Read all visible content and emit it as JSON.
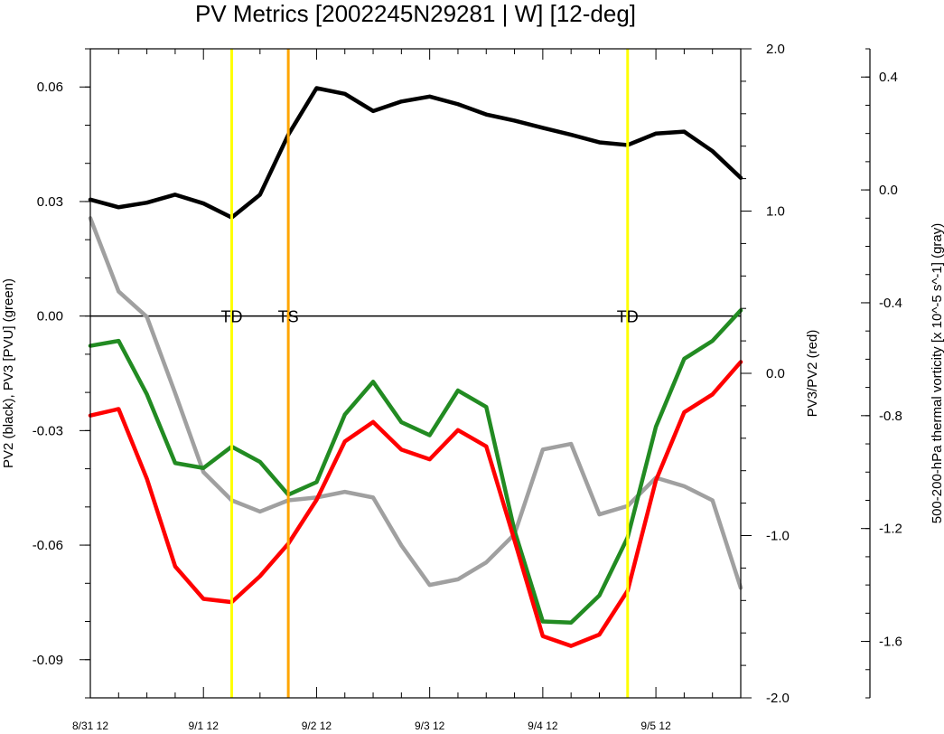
{
  "chart_data": {
    "type": "line",
    "title": "PV Metrics [2002245N29281 | W] [12-deg]",
    "left_axis": {
      "label": "PV2 (black), PV3 [PVU] (green)",
      "ylim": [
        -0.1,
        0.07
      ],
      "ticks": [
        0.06,
        0.03,
        0.0,
        -0.03,
        -0.06,
        -0.09
      ],
      "tick_labels": [
        "0.06",
        "0.03",
        "0.00",
        "-0.03",
        "-0.06",
        "-0.09"
      ]
    },
    "right_axis": {
      "label": "PV3/PV2 (red)",
      "ylim": [
        -2.0,
        2.0
      ],
      "ticks": [
        2.0,
        1.0,
        0.0,
        -1.0,
        -2.0
      ],
      "tick_labels": [
        "2.0",
        "1.0",
        "0.0",
        "-1.0",
        "-2.0"
      ]
    },
    "far_right_axis": {
      "label": "500-200-hPa thermal vorticity [x 10^-5 s^-1] (gray)",
      "ylim": [
        -1.8,
        0.5
      ],
      "ticks": [
        0.4,
        0.0,
        -0.4,
        -0.8,
        -1.2,
        -1.6
      ],
      "tick_labels": [
        "0.4",
        "0.0",
        "-0.4",
        "-0.8",
        "-1.2",
        "-1.6"
      ]
    },
    "x_axis": {
      "tick_positions": [
        0,
        4,
        8,
        12,
        16,
        20
      ],
      "tick_labels": [
        "8/31 12",
        "9/1 12",
        "9/2 12",
        "9/3 12",
        "9/4 12",
        "9/5 12"
      ],
      "xlim": [
        0,
        23
      ]
    },
    "x": [
      0,
      1,
      2,
      3,
      4,
      5,
      6,
      7,
      8,
      9,
      10,
      11,
      12,
      13,
      14,
      15,
      16,
      17,
      18,
      19,
      20,
      21,
      22,
      23
    ],
    "series": [
      {
        "name": "PV2",
        "color": "#000000",
        "axis": "left",
        "values": [
          0.0305,
          0.0285,
          0.0297,
          0.0318,
          0.0295,
          0.0258,
          0.0318,
          0.0475,
          0.0597,
          0.0582,
          0.0537,
          0.0562,
          0.0575,
          0.0555,
          0.0528,
          0.0512,
          0.0493,
          0.0475,
          0.0455,
          0.0448,
          0.0478,
          0.0483,
          0.0432,
          0.0362
        ]
      },
      {
        "name": "PV3",
        "color": "#228B22",
        "axis": "left",
        "values": [
          -0.0078,
          -0.0065,
          -0.0205,
          -0.0385,
          -0.0398,
          -0.0342,
          -0.0382,
          -0.0468,
          -0.0435,
          -0.0258,
          -0.0172,
          -0.0278,
          -0.0312,
          -0.0195,
          -0.0238,
          -0.0562,
          -0.08,
          -0.0803,
          -0.0732,
          -0.058,
          -0.029,
          -0.0112,
          -0.0065,
          0.0015
        ]
      },
      {
        "name": "PV3/PV2",
        "color": "#ff0000",
        "axis": "right",
        "values": [
          -0.26,
          -0.22,
          -0.65,
          -1.19,
          -1.39,
          -1.41,
          -1.25,
          -1.05,
          -0.78,
          -0.42,
          -0.3,
          -0.47,
          -0.53,
          -0.35,
          -0.45,
          -1.03,
          -1.62,
          -1.68,
          -1.61,
          -1.34,
          -0.66,
          -0.24,
          -0.13,
          0.07
        ]
      },
      {
        "name": "500-200-hPa thermal vorticity",
        "color": "#a0a0a0",
        "axis": "far_right",
        "values": [
          -0.1,
          -0.36,
          -0.45,
          -0.72,
          -1.0,
          -1.1,
          -1.14,
          -1.1,
          -1.09,
          -1.07,
          -1.09,
          -1.26,
          -1.4,
          -1.38,
          -1.32,
          -1.22,
          -0.92,
          -0.9,
          -1.15,
          -1.12,
          -1.02,
          -1.05,
          -1.1,
          -1.41
        ]
      }
    ],
    "markers": [
      {
        "label": "TD",
        "x": 5.0,
        "color": "#ffff00"
      },
      {
        "label": "TS",
        "x": 7.0,
        "color": "#ffa500"
      },
      {
        "label": "TD",
        "x": 19.0,
        "color": "#ffff00"
      }
    ],
    "zero_line": 0.0
  }
}
